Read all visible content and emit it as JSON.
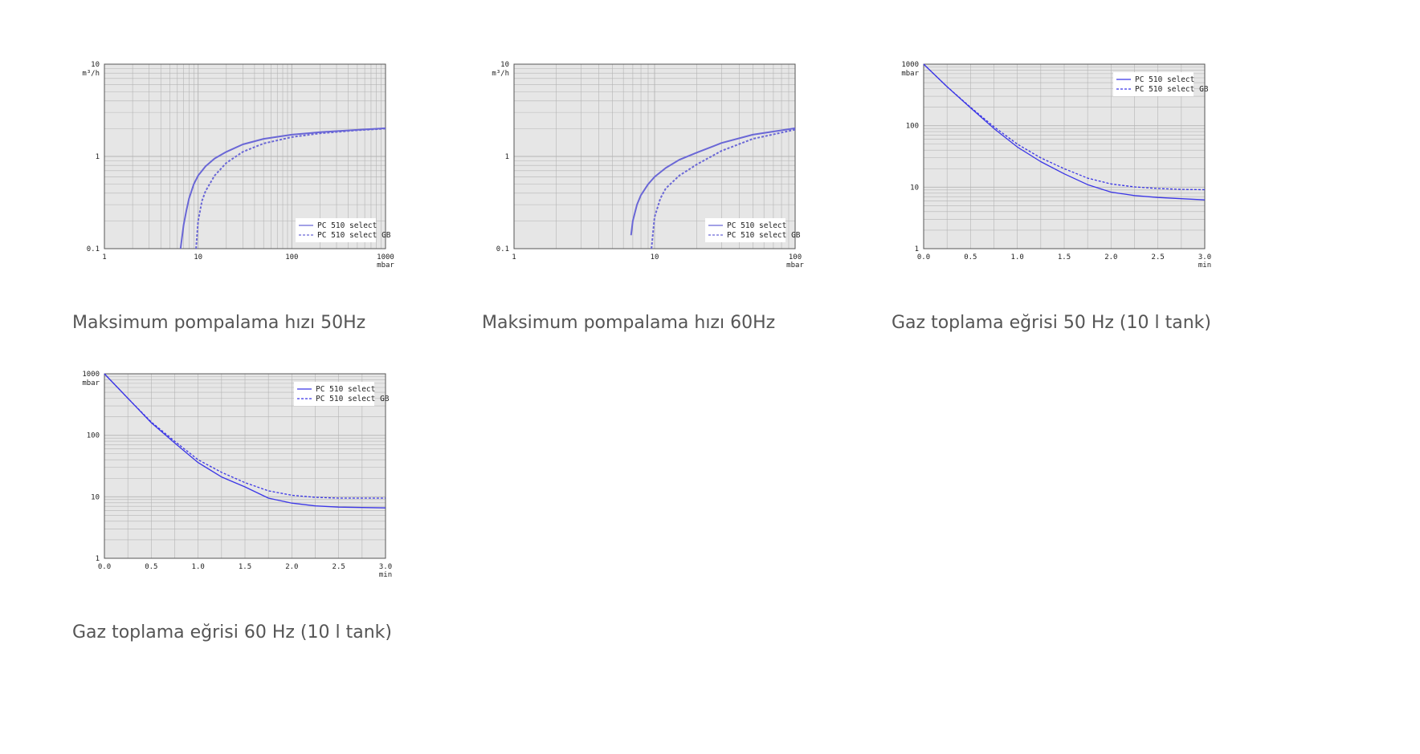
{
  "colors": {
    "plot_bg": "#e6e6e6",
    "grid": "#b4b4b4",
    "frame": "#555555",
    "series_speed": "#6a67d6",
    "series_pump": "#3b36e6",
    "caption_text": "#555555"
  },
  "chart_data": [
    {
      "id": "speed50",
      "caption": "Maksimum pompalama hızı 50Hz",
      "type": "line",
      "xscale": "log",
      "yscale": "log",
      "xlim": [
        1,
        1000
      ],
      "ylim": [
        0.1,
        10
      ],
      "xticks": [
        1,
        10,
        100,
        1000
      ],
      "xtick_labels": [
        "1",
        "10",
        "100",
        "1000"
      ],
      "yticks": [
        0.1,
        1,
        10
      ],
      "ytick_labels": [
        "0.1",
        "1",
        "10"
      ],
      "xlabel": "mbar",
      "ylabel": "m³/h",
      "grid": true,
      "legend": "bottom-right",
      "series": [
        {
          "name": "PC 510 select",
          "style": "solid",
          "x": [
            6.5,
            7,
            7.5,
            8,
            9,
            10,
            12,
            15,
            20,
            30,
            50,
            100,
            200,
            500,
            1000
          ],
          "y": [
            0.1,
            0.18,
            0.26,
            0.35,
            0.5,
            0.62,
            0.78,
            0.95,
            1.12,
            1.35,
            1.55,
            1.72,
            1.83,
            1.94,
            2.02
          ]
        },
        {
          "name": "PC 510 select GB",
          "style": "dashed",
          "x": [
            9.5,
            10,
            11,
            12,
            15,
            20,
            30,
            50,
            100,
            200,
            500,
            1000
          ],
          "y": [
            0.1,
            0.2,
            0.33,
            0.42,
            0.62,
            0.85,
            1.12,
            1.38,
            1.62,
            1.78,
            1.92,
            2.0
          ]
        }
      ]
    },
    {
      "id": "speed60",
      "caption": "Maksimum pompalama hızı 60Hz",
      "type": "line",
      "xscale": "log",
      "yscale": "log",
      "xlim": [
        1,
        100
      ],
      "ylim": [
        0.1,
        10
      ],
      "xticks": [
        1,
        10,
        100
      ],
      "xtick_labels": [
        "1",
        "10",
        "100"
      ],
      "yticks": [
        0.1,
        1,
        10
      ],
      "ytick_labels": [
        "0.1",
        "1",
        "10"
      ],
      "xlabel": "mbar",
      "ylabel": "m³/h",
      "grid": true,
      "legend": "bottom-right",
      "series": [
        {
          "name": "PC 510 select",
          "style": "solid",
          "x": [
            6.8,
            7,
            7.5,
            8,
            9,
            10,
            12,
            15,
            20,
            30,
            50,
            100
          ],
          "y": [
            0.14,
            0.2,
            0.3,
            0.38,
            0.5,
            0.6,
            0.75,
            0.92,
            1.1,
            1.4,
            1.72,
            2.02
          ]
        },
        {
          "name": "PC 510 select GB",
          "style": "dashed",
          "x": [
            9.5,
            10,
            11,
            12,
            15,
            20,
            30,
            50,
            100
          ],
          "y": [
            0.1,
            0.22,
            0.35,
            0.45,
            0.62,
            0.82,
            1.15,
            1.55,
            1.95
          ]
        }
      ]
    },
    {
      "id": "pump50",
      "caption": "Gaz toplama eğrisi 50 Hz (10 l tank)",
      "type": "line",
      "xscale": "linear",
      "yscale": "log",
      "xlim": [
        0,
        3
      ],
      "ylim": [
        1,
        1000
      ],
      "xticks": [
        0,
        0.5,
        1,
        1.5,
        2,
        2.5,
        3
      ],
      "xtick_labels": [
        "0.0",
        "0.5",
        "1.0",
        "1.5",
        "2.0",
        "2.5",
        "3.0"
      ],
      "yticks": [
        1,
        10,
        100,
        1000
      ],
      "ytick_labels": [
        "1",
        "10",
        "100",
        "1000"
      ],
      "xlabel": "min",
      "ylabel": "mbar",
      "grid": true,
      "legend": "top-right",
      "series": [
        {
          "name": "PC 510 select",
          "style": "solid",
          "x": [
            0,
            0.25,
            0.5,
            0.75,
            1.0,
            1.25,
            1.5,
            1.75,
            2.0,
            2.25,
            2.5,
            2.75,
            3.0
          ],
          "y": [
            1000,
            430,
            195,
            90,
            45,
            26,
            16.5,
            11,
            8.3,
            7.3,
            6.8,
            6.5,
            6.2
          ]
        },
        {
          "name": "PC 510 select GB",
          "style": "dashed",
          "x": [
            0,
            0.25,
            0.5,
            0.75,
            1.0,
            1.25,
            1.5,
            1.75,
            2.0,
            2.25,
            2.5,
            2.75,
            3.0
          ],
          "y": [
            1000,
            430,
            200,
            96,
            50,
            30,
            20,
            14,
            11.3,
            10.1,
            9.5,
            9.2,
            9.1
          ]
        }
      ]
    },
    {
      "id": "pump60",
      "caption": "Gaz toplama eğrisi 60 Hz (10 l tank)",
      "type": "line",
      "xscale": "linear",
      "yscale": "log",
      "xlim": [
        0,
        3
      ],
      "ylim": [
        1,
        1000
      ],
      "xticks": [
        0,
        0.5,
        1,
        1.5,
        2,
        2.5,
        3
      ],
      "xtick_labels": [
        "0.0",
        "0.5",
        "1.0",
        "1.5",
        "2.0",
        "2.5",
        "3.0"
      ],
      "yticks": [
        1,
        10,
        100,
        1000
      ],
      "ytick_labels": [
        "1",
        "10",
        "100",
        "1000"
      ],
      "xlabel": "min",
      "ylabel": "mbar",
      "grid": true,
      "legend": "top-right",
      "series": [
        {
          "name": "PC 510 select",
          "style": "solid",
          "x": [
            0,
            0.25,
            0.5,
            0.75,
            1.0,
            1.25,
            1.5,
            1.75,
            2.0,
            2.25,
            2.5,
            2.75,
            3.0
          ],
          "y": [
            1000,
            400,
            160,
            75,
            36,
            21,
            14.5,
            9.5,
            7.9,
            7.1,
            6.8,
            6.7,
            6.6
          ]
        },
        {
          "name": "PC 510 select GB",
          "style": "dashed",
          "x": [
            0,
            0.25,
            0.5,
            0.75,
            1.0,
            1.25,
            1.5,
            1.75,
            2.0,
            2.25,
            2.5,
            2.75,
            3.0
          ],
          "y": [
            1000,
            400,
            165,
            80,
            40,
            25,
            17,
            12.5,
            10.6,
            9.8,
            9.5,
            9.5,
            9.5
          ]
        }
      ]
    }
  ]
}
